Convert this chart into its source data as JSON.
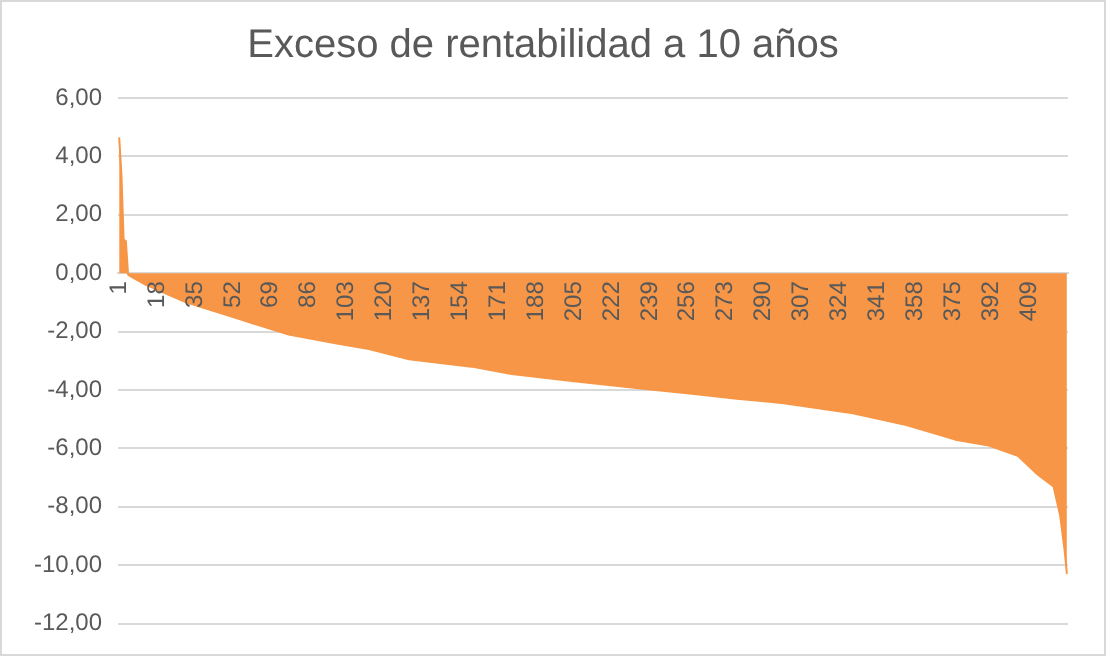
{
  "chart_data": {
    "type": "area",
    "title": "Exceso de rentabilidad a 10 años",
    "x": [
      1,
      2,
      3,
      4,
      5,
      6,
      13,
      31,
      56,
      77,
      98,
      113,
      131,
      159,
      177,
      205,
      235,
      260,
      278,
      299,
      330,
      354,
      376,
      391,
      404,
      413,
      420,
      423,
      425,
      426
    ],
    "series": [
      {
        "color": "#f79646",
        "values": [
          4.65,
          3.4,
          1.15,
          1.1,
          -0.05,
          -0.1,
          -0.4,
          -1.0,
          -1.6,
          -2.1,
          -2.4,
          -2.6,
          -2.95,
          -3.2,
          -3.45,
          -3.7,
          -3.95,
          -4.15,
          -4.3,
          -4.45,
          -4.8,
          -5.2,
          -5.7,
          -5.9,
          -6.25,
          -6.9,
          -7.3,
          -8.3,
          -9.5,
          -10.3
        ]
      }
    ],
    "xlim": [
      0.5,
      426.5
    ],
    "xticks": [
      1,
      18,
      35,
      52,
      69,
      86,
      103,
      120,
      137,
      154,
      171,
      188,
      205,
      222,
      239,
      256,
      273,
      290,
      307,
      324,
      341,
      358,
      375,
      392,
      409
    ],
    "ylim": [
      -12,
      6
    ],
    "yticks": [
      {
        "value": -12,
        "label": "-12,00"
      },
      {
        "value": -10,
        "label": "-10,00"
      },
      {
        "value": -8,
        "label": "-8,00"
      },
      {
        "value": -6,
        "label": "-6,00"
      },
      {
        "value": -4,
        "label": "-4,00"
      },
      {
        "value": -2,
        "label": "-2,00"
      },
      {
        "value": 0,
        "label": "0,00"
      },
      {
        "value": 2,
        "label": "2,00"
      },
      {
        "value": 4,
        "label": "4,00"
      },
      {
        "value": 6,
        "label": "6,00"
      }
    ],
    "grid": "y",
    "legend": false
  }
}
